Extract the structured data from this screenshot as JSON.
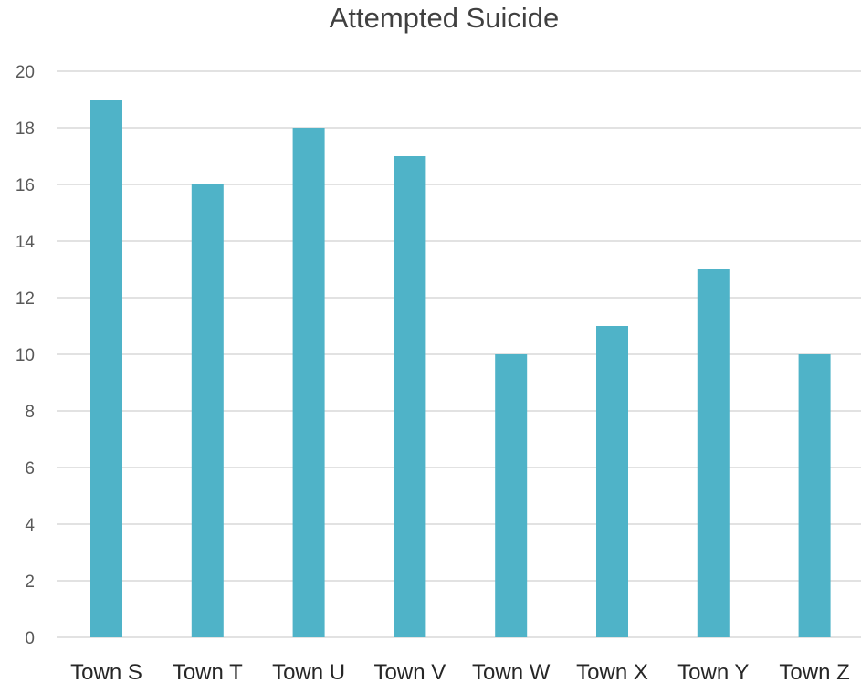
{
  "chart_data": {
    "type": "bar",
    "title": "Attempted Suicide",
    "xlabel": "",
    "ylabel": "",
    "categories": [
      "Town S",
      "Town T",
      "Town U",
      "Town V",
      "Town W",
      "Town X",
      "Town Y",
      "Town Z"
    ],
    "values": [
      19,
      16,
      18,
      17,
      10,
      11,
      13,
      10
    ],
    "ylim": [
      0,
      20
    ],
    "yticks": [
      "0",
      "2",
      "4",
      "6",
      "8",
      "10",
      "12",
      "14",
      "16",
      "18",
      "20"
    ],
    "grid": true,
    "legend": "none",
    "bar_color": "#4fb3c8",
    "grid_color": "#d9d9d9"
  }
}
